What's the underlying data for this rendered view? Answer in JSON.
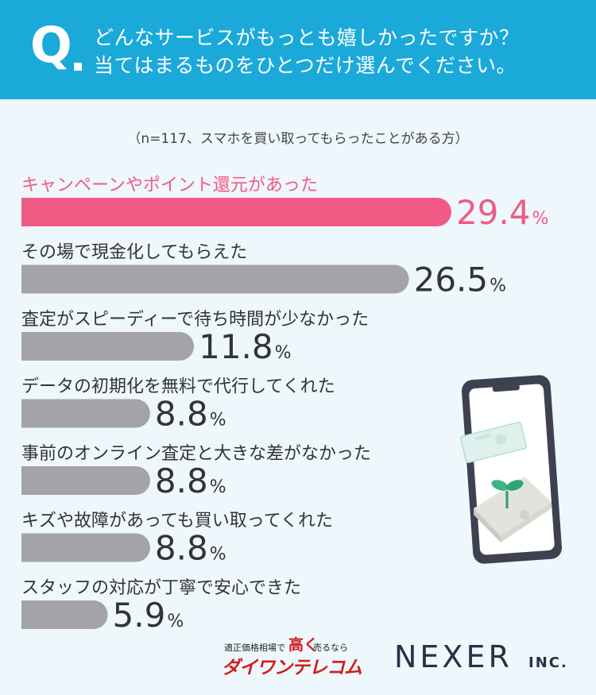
{
  "header": {
    "q_label": "Q",
    "question_lines": [
      "どんなサービスがもっとも嬉しかったですか？",
      "当てはまるものをひとつだけ選んでください。"
    ]
  },
  "note": "（n=117、スマホを買い取ってもらったことがある方）",
  "colors": {
    "header_bg": "#1aa9d9",
    "highlight": "#ef5b84",
    "bar": "#a3a3a8",
    "label": "#333333",
    "background": "#eef7fb"
  },
  "chart_data": {
    "type": "bar",
    "orientation": "horizontal",
    "unit": "%",
    "categories": [
      "キャンペーンやポイント還元があった",
      "その場で現金化してもらえた",
      "査定がスピーディーで待ち時間が少なかった",
      "データの初期化を無料で代行してくれた",
      "事前のオンライン査定と大きな差がなかった",
      "キズや故障があっても買い取ってくれた",
      "スタッフの対応が丁寧で安心できた"
    ],
    "values": [
      29.4,
      26.5,
      11.8,
      8.8,
      8.8,
      8.8,
      5.9
    ],
    "value_labels": [
      "29.4",
      "26.5",
      "11.8",
      "8.8",
      "8.8",
      "8.8",
      "5.9"
    ],
    "highlight_index": 0
  },
  "logos": {
    "daiwan_tagline_a": "適正価格相場で",
    "daiwan_tagline_b": "高く",
    "daiwan_tagline_c": "売るなら",
    "daiwan_name": "ダイワンテレコム",
    "nexer": "NEXER",
    "nexer_suffix": "INC."
  }
}
